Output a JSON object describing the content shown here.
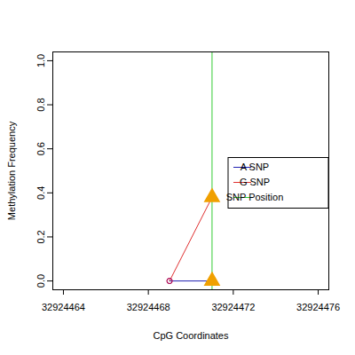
{
  "chart_data": {
    "type": "line",
    "x_label": "CpG Coordinates",
    "y_label": "Methylation Frequency",
    "xlim": [
      32924463.5,
      32924476.5
    ],
    "xticks": [
      32924464,
      32924468,
      32924472,
      32924476
    ],
    "ylim": [
      -0.04,
      1.04
    ],
    "yticks": [
      {
        "value": 0,
        "label": "0.0"
      },
      0.2,
      0.4,
      0.6,
      0.8,
      {
        "value": 1,
        "label": "1.0"
      }
    ],
    "series": [
      {
        "name": "A SNP",
        "color": "#2020b0",
        "x": [
          32924469,
          32924471
        ],
        "values": [
          0,
          0
        ]
      },
      {
        "name": "G SNP",
        "color": "#e03030",
        "x": [
          32924469,
          32924471
        ],
        "values": [
          0,
          0.38
        ]
      }
    ],
    "snp_position": {
      "name": "SNP Position",
      "color": "#33cc33",
      "x": 32924471
    },
    "legend": "right"
  }
}
